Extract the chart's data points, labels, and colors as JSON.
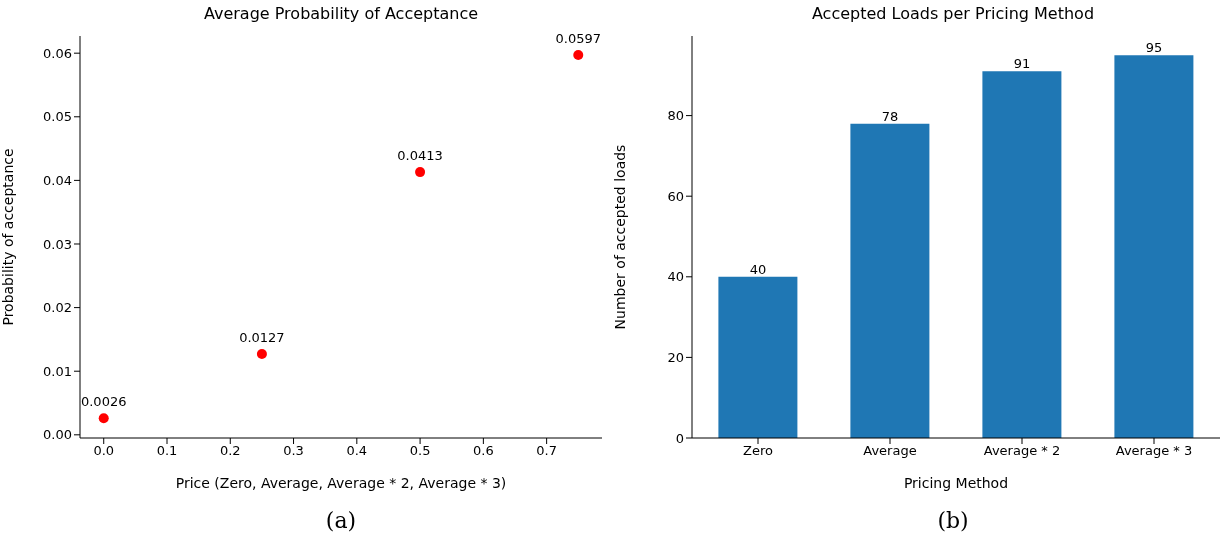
{
  "chart_data": [
    {
      "type": "scatter",
      "title": "Average Probability of Acceptance",
      "xlabel": "Price (Zero, Average, Average * 2, Average * 3)",
      "ylabel": "Probability of acceptance",
      "x": [
        0,
        0.25,
        0.5,
        0.75
      ],
      "values": [
        0.0026,
        0.0127,
        0.0413,
        0.0597
      ],
      "color": "#ff0000",
      "marker": "circle",
      "data_labels": true,
      "xlim": [
        -0.0375,
        0.7875
      ],
      "xticks": [
        {
          "value": 0,
          "label": "0.0"
        },
        0.1,
        0.2,
        0.3,
        0.4,
        0.5,
        0.6,
        0.7
      ],
      "ylim": [
        -0.0005,
        0.0627
      ],
      "yticks": [
        {
          "value": 0,
          "label": "0.00"
        },
        0.01,
        0.02,
        0.03,
        0.04,
        0.05,
        0.06
      ],
      "annotations": [
        "(a)"
      ]
    },
    {
      "type": "bar",
      "title": "Accepted Loads per Pricing Method",
      "xlabel": "Pricing Method",
      "ylabel": "Number of accepted loads",
      "categories": [
        "Zero",
        "Average",
        "Average * 2",
        "Average * 3"
      ],
      "values": [
        40,
        78,
        91,
        95
      ],
      "color": "#1f77b4",
      "data_labels": true,
      "ylim": [
        0,
        99.75
      ],
      "yticks": [
        0,
        20,
        40,
        60,
        80
      ],
      "annotations": [
        "(b)"
      ]
    }
  ]
}
